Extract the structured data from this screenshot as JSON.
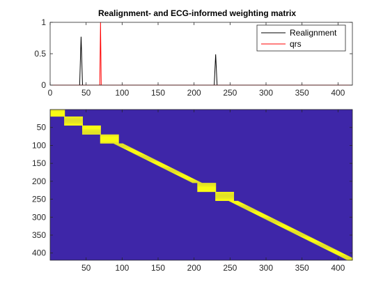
{
  "chart_data": [
    {
      "type": "line",
      "title": "Realignment- and ECG-informed weighting matrix",
      "xlabel": "",
      "ylabel": "",
      "xlim": [
        0,
        420
      ],
      "ylim": [
        0,
        1
      ],
      "x_ticks": [
        0,
        50,
        100,
        150,
        200,
        250,
        300,
        350,
        400
      ],
      "y_ticks": [
        0,
        0.5,
        1
      ],
      "y_tick_labels": [
        "0",
        "0.5",
        "1"
      ],
      "legend_position": "top-right",
      "series": [
        {
          "name": "Realignment",
          "color": "#000000",
          "x": [
            0,
            41,
            43,
            45,
            228,
            230,
            232,
            420
          ],
          "values": [
            0,
            0,
            0.77,
            0,
            0,
            0.49,
            0,
            0
          ]
        },
        {
          "name": "qrs",
          "color": "#ff0000",
          "x": [
            0,
            69,
            70,
            71,
            420
          ],
          "values": [
            0,
            0,
            1,
            0,
            0
          ]
        }
      ]
    },
    {
      "type": "heatmap",
      "title": "",
      "xlim": [
        0,
        420
      ],
      "ylim": [
        420,
        0
      ],
      "x_ticks": [
        50,
        100,
        150,
        200,
        250,
        300,
        350,
        400
      ],
      "y_ticks": [
        50,
        100,
        150,
        200,
        250,
        300,
        350,
        400
      ],
      "background_color": "#3e26a8",
      "band_color": "#f9fb15",
      "band_half_width": 6,
      "block_segments": [
        {
          "start": 1,
          "end": 20
        },
        {
          "start": 20,
          "end": 45
        },
        {
          "start": 45,
          "end": 70
        },
        {
          "start": 70,
          "end": 95
        },
        {
          "start": 205,
          "end": 230
        },
        {
          "start": 230,
          "end": 255
        }
      ]
    }
  ]
}
